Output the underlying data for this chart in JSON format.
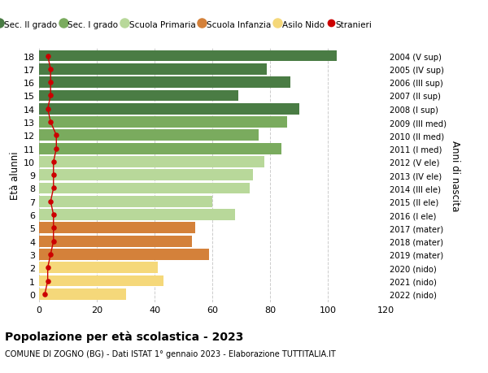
{
  "ages": [
    18,
    17,
    16,
    15,
    14,
    13,
    12,
    11,
    10,
    9,
    8,
    7,
    6,
    5,
    4,
    3,
    2,
    1,
    0
  ],
  "bar_values": [
    103,
    79,
    87,
    69,
    90,
    86,
    76,
    84,
    78,
    74,
    73,
    60,
    68,
    54,
    53,
    59,
    41,
    43,
    30
  ],
  "stranieri_values": [
    3,
    4,
    4,
    4,
    3,
    4,
    6,
    6,
    5,
    5,
    5,
    4,
    5,
    5,
    5,
    4,
    3,
    3,
    2
  ],
  "right_labels": [
    "2004 (V sup)",
    "2005 (IV sup)",
    "2006 (III sup)",
    "2007 (II sup)",
    "2008 (I sup)",
    "2009 (III med)",
    "2010 (II med)",
    "2011 (I med)",
    "2012 (V ele)",
    "2013 (IV ele)",
    "2014 (III ele)",
    "2015 (II ele)",
    "2016 (I ele)",
    "2017 (mater)",
    "2018 (mater)",
    "2019 (mater)",
    "2020 (nido)",
    "2021 (nido)",
    "2022 (nido)"
  ],
  "bar_colors": [
    "#4a7c44",
    "#4a7c44",
    "#4a7c44",
    "#4a7c44",
    "#4a7c44",
    "#7aab5e",
    "#7aab5e",
    "#7aab5e",
    "#b8d89a",
    "#b8d89a",
    "#b8d89a",
    "#b8d89a",
    "#b8d89a",
    "#d4813a",
    "#d4813a",
    "#d4813a",
    "#f5d87a",
    "#f5d87a",
    "#f5d87a"
  ],
  "legend_items": [
    {
      "label": "Sec. II grado",
      "color": "#4a7c44",
      "type": "circle"
    },
    {
      "label": "Sec. I grado",
      "color": "#7aab5e",
      "type": "circle"
    },
    {
      "label": "Scuola Primaria",
      "color": "#b8d89a",
      "type": "circle"
    },
    {
      "label": "Scuola Infanzia",
      "color": "#d4813a",
      "type": "circle"
    },
    {
      "label": "Asilo Nido",
      "color": "#f5d87a",
      "type": "circle"
    },
    {
      "label": "Stranieri",
      "color": "#cc0000",
      "type": "dot"
    }
  ],
  "ylabel": "Età alunni",
  "right_ylabel": "Anni di nascita",
  "title": "Popolazione per età scolastica - 2023",
  "subtitle": "COMUNE DI ZOGNO (BG) - Dati ISTAT 1° gennaio 2023 - Elaborazione TUTTITALIA.IT",
  "xlim": [
    0,
    120
  ],
  "xticks": [
    0,
    20,
    40,
    60,
    80,
    100,
    120
  ],
  "background_color": "#ffffff",
  "grid_color": "#cccccc",
  "stranieri_color": "#cc0000",
  "bar_height": 0.85
}
